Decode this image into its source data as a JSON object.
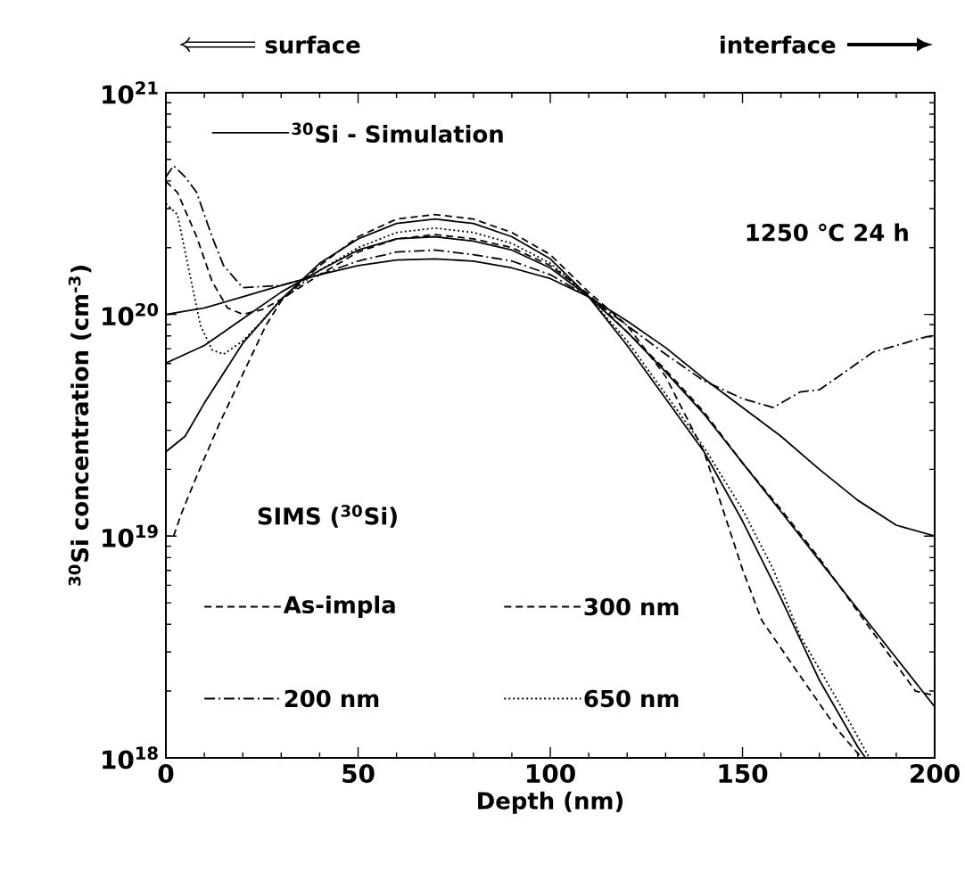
{
  "chart_data": {
    "type": "line",
    "xlabel": "Depth (nm)",
    "ylabel": "$^{30}$Si concentration (cm$^{-3}$)",
    "xlim": [
      0,
      200
    ],
    "xticks": [
      0,
      50,
      100,
      150,
      200
    ],
    "ylim": [
      1e+18,
      1e+21
    ],
    "log": "y",
    "yticks": [
      {
        "value": 1e+18,
        "label": "10$^{18}$"
      },
      {
        "value": 1e+19,
        "label": "10$^{19}$"
      },
      {
        "value": 1e+20,
        "label": "10$^{20}$"
      },
      {
        "value": 1e+21,
        "label": "10$^{21}$"
      }
    ],
    "legend": "left",
    "legend_title": "SIMS ($^{30}$Si)",
    "annotations": [
      "surface",
      "interface",
      "1250 ℃  24 h"
    ],
    "series": [
      {
        "name": "$^{30}$Si - Simulation",
        "color": "#000000",
        "line_style": "solid",
        "x": [
          0,
          10,
          20,
          30,
          40,
          50,
          60,
          70,
          80,
          90,
          100,
          110,
          120,
          130,
          140,
          150,
          160,
          170,
          180,
          190,
          200
        ],
        "values": [
          1e+20,
          1.07e+20,
          1.2e+20,
          1.35e+20,
          1.51e+20,
          1.66e+20,
          1.76e+20,
          1.78e+20,
          1.74e+20,
          1.62e+20,
          1.45e+20,
          1.2e+20,
          9.33e+19,
          7.08e+19,
          5.13e+19,
          3.8e+19,
          2.82e+19,
          2e+19,
          1.45e+19,
          1.12e+19,
          1e+19
        ]
      },
      {
        "color": "#000000",
        "line_style": "solid",
        "x": [
          0,
          10,
          20,
          30,
          40,
          50,
          60,
          70,
          80,
          90,
          100,
          110,
          120,
          130,
          140,
          150,
          160,
          170,
          180,
          190,
          200
        ],
        "values": [
          6.03e+19,
          7.24e+19,
          9.55e+19,
          1.26e+20,
          1.58e+20,
          1.95e+20,
          2.19e+20,
          2.24e+20,
          2.14e+20,
          1.95e+20,
          1.62e+20,
          1.2e+20,
          8.32e+19,
          5.5e+19,
          3.55e+19,
          2.14e+19,
          1.29e+19,
          7.76e+18,
          4.68e+18,
          2.82e+18,
          1.7e+18
        ]
      },
      {
        "color": "#000000",
        "line_style": "solid",
        "x": [
          0,
          5,
          10,
          20,
          30,
          40,
          50,
          60,
          70,
          80,
          90,
          100,
          110,
          120,
          130,
          140,
          150,
          160,
          170,
          180,
          182
        ],
        "values": [
          2.4e+19,
          2.82e+19,
          3.98e+19,
          7.41e+19,
          1.17e+20,
          1.7e+20,
          2.19e+20,
          2.57e+20,
          2.69e+20,
          2.57e+20,
          2.24e+20,
          1.78e+20,
          1.2e+20,
          7.24e+19,
          4.17e+19,
          2.4e+19,
          1.17e+19,
          5.25e+18,
          2.24e+18,
          1.12e+18,
          1e+18
        ]
      },
      {
        "name": "As-impla",
        "color": "#000000",
        "line_style": "dashed",
        "x": [
          2,
          4,
          8,
          14,
          20,
          26,
          30,
          40,
          50,
          60,
          70,
          80,
          90,
          100,
          110,
          120,
          130,
          140,
          150,
          155,
          165,
          175,
          181
        ],
        "values": [
          1e+19,
          1.26e+19,
          1.86e+19,
          3.24e+19,
          5.37e+19,
          8.91e+19,
          1.15e+20,
          1.66e+20,
          2.24e+20,
          2.69e+20,
          2.82e+20,
          2.69e+20,
          2.34e+20,
          1.86e+20,
          1.26e+20,
          8.91e+19,
          5.25e+19,
          2.4e+19,
          7.08e+18,
          4.17e+18,
          2.34e+18,
          1.32e+18,
          1e+18
        ]
      },
      {
        "name": "300 nm",
        "color": "#000000",
        "line_style": "dashed",
        "x": [
          0,
          3,
          8,
          12,
          16,
          20,
          25,
          30,
          40,
          50,
          60,
          70,
          80,
          90,
          100,
          110,
          120,
          130,
          140,
          150,
          160,
          170,
          180,
          190,
          195,
          200
        ],
        "values": [
          3.98e+20,
          3.55e+20,
          2.24e+20,
          1.41e+20,
          1.07e+20,
          1e+20,
          1.05e+20,
          1.17e+20,
          1.51e+20,
          1.91e+20,
          2.19e+20,
          2.29e+20,
          2.19e+20,
          2e+20,
          1.66e+20,
          1.23e+20,
          8.32e+19,
          5.62e+19,
          3.63e+19,
          2.14e+19,
          1.32e+19,
          7.94e+18,
          4.57e+18,
          2.63e+18,
          2e+18,
          1.91e+18
        ]
      },
      {
        "name": "200 nm",
        "color": "#000000",
        "line_style": "dashdot",
        "x": [
          0,
          2,
          5,
          8,
          12,
          15,
          20,
          30,
          40,
          50,
          60,
          70,
          80,
          90,
          100,
          110,
          120,
          130,
          140,
          150,
          158,
          165,
          170,
          175,
          184,
          190,
          198,
          200
        ],
        "values": [
          4.17e+20,
          4.68e+20,
          4.17e+20,
          3.55e+20,
          2.24e+20,
          1.66e+20,
          1.32e+20,
          1.35e+20,
          1.51e+20,
          1.74e+20,
          1.91e+20,
          1.95e+20,
          1.86e+20,
          1.74e+20,
          1.51e+20,
          1.2e+20,
          8.91e+19,
          6.61e+19,
          5.01e+19,
          4.17e+19,
          3.8e+19,
          4.47e+19,
          4.57e+19,
          5.25e+19,
          6.76e+19,
          7.24e+19,
          7.94e+19,
          7.94e+19
        ]
      },
      {
        "name": "650 nm",
        "color": "#000000",
        "line_style": "dotted",
        "x": [
          0,
          3,
          6,
          9,
          12,
          15,
          20,
          25,
          30,
          40,
          50,
          60,
          70,
          80,
          90,
          100,
          110,
          120,
          130,
          140,
          150,
          158,
          165,
          175,
          183
        ],
        "values": [
          3.16e+20,
          2.82e+20,
          1.58e+20,
          8.91e+19,
          6.92e+19,
          6.61e+19,
          7.59e+19,
          9.33e+19,
          1.17e+20,
          1.58e+20,
          2e+20,
          2.34e+20,
          2.45e+20,
          2.34e+20,
          2.09e+20,
          1.7e+20,
          1.2e+20,
          7.59e+19,
          4.37e+19,
          2.51e+19,
          1.32e+19,
          7.08e+18,
          3.55e+18,
          1.78e+18,
          1e+18
        ]
      }
    ]
  }
}
